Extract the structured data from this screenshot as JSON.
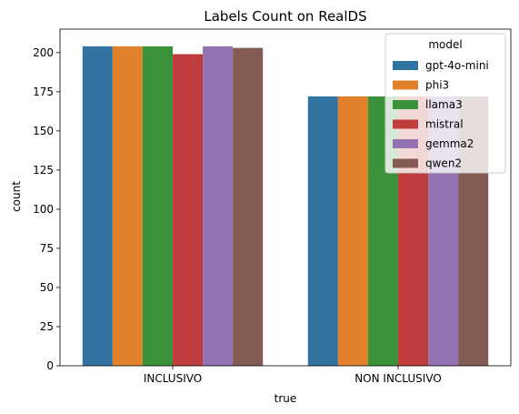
{
  "chart_data": {
    "type": "bar",
    "title": "Labels Count on RealDS",
    "xlabel": "true",
    "ylabel": "count",
    "categories": [
      "INCLUSIVO",
      "NON INCLUSIVO"
    ],
    "ylim": [
      0,
      215
    ],
    "yticks": [
      0,
      25,
      50,
      75,
      100,
      125,
      150,
      175,
      200
    ],
    "grid": false,
    "legend": {
      "title": "model",
      "placement": "top-right"
    },
    "series": [
      {
        "name": "gpt-4o-mini",
        "color": "#3274a1",
        "values": [
          204,
          172
        ]
      },
      {
        "name": "phi3",
        "color": "#e1812c",
        "values": [
          204,
          172
        ]
      },
      {
        "name": "llama3",
        "color": "#3a923a",
        "values": [
          204,
          172
        ]
      },
      {
        "name": "mistral",
        "color": "#c03d3e",
        "values": [
          199,
          172
        ]
      },
      {
        "name": "gemma2",
        "color": "#9372b2",
        "values": [
          204,
          172
        ]
      },
      {
        "name": "qwen2",
        "color": "#845b53",
        "values": [
          203,
          172
        ]
      }
    ]
  }
}
